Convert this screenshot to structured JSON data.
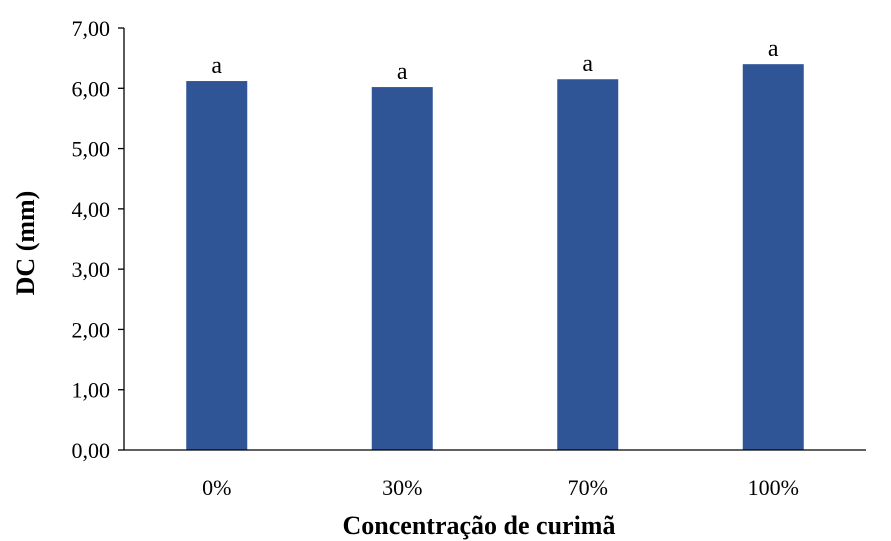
{
  "chart_data": {
    "type": "bar",
    "title": "",
    "xlabel": "Concentração de curimã",
    "ylabel": "DC (mm)",
    "categories": [
      "0%",
      "30%",
      "70%",
      "100%"
    ],
    "values": [
      6.12,
      6.02,
      6.15,
      6.4
    ],
    "data_labels": [
      "a",
      "a",
      "a",
      "a"
    ],
    "ylim": [
      0,
      7
    ],
    "yticks": [
      0,
      1,
      2,
      3,
      4,
      5,
      6,
      7
    ],
    "ytick_labels": [
      "0,00",
      "1,00",
      "2,00",
      "3,00",
      "4,00",
      "5,00",
      "6,00",
      "7,00"
    ],
    "grid": false,
    "legend": "none",
    "bar_color": "#2F5597",
    "axis_color": "#000000"
  }
}
